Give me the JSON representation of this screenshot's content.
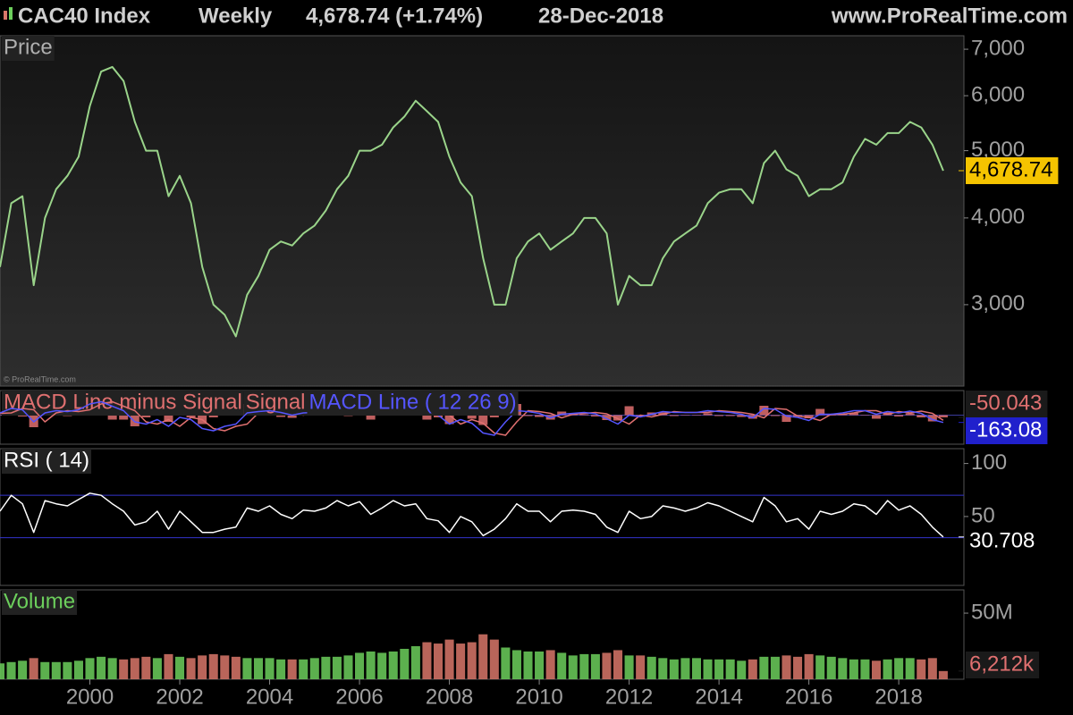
{
  "chart_data": {
    "type": "stock",
    "title": "CAC40 Index",
    "period": "Weekly",
    "quote": "4,678.74 (+1.74%)",
    "date": "28-Dec-2018",
    "source": "www.ProRealTime.com",
    "watermark": "© ProRealTime.com",
    "x": [
      1998,
      1998.25,
      1998.5,
      1998.75,
      1999,
      1999.25,
      1999.5,
      1999.75,
      2000,
      2000.25,
      2000.5,
      2000.75,
      2001,
      2001.25,
      2001.5,
      2001.75,
      2002,
      2002.25,
      2002.5,
      2002.75,
      2003,
      2003.25,
      2003.5,
      2003.75,
      2004,
      2004.25,
      2004.5,
      2004.75,
      2005,
      2005.25,
      2005.5,
      2005.75,
      2006,
      2006.25,
      2006.5,
      2006.75,
      2007,
      2007.25,
      2007.5,
      2007.75,
      2008,
      2008.25,
      2008.5,
      2008.75,
      2009,
      2009.25,
      2009.5,
      2009.75,
      2010,
      2010.25,
      2010.5,
      2010.75,
      2011,
      2011.25,
      2011.5,
      2011.75,
      2012,
      2012.25,
      2012.5,
      2012.75,
      2013,
      2013.25,
      2013.5,
      2013.75,
      2014,
      2014.25,
      2014.5,
      2014.75,
      2015,
      2015.25,
      2015.5,
      2015.75,
      2016,
      2016.25,
      2016.5,
      2016.75,
      2017,
      2017.25,
      2017.5,
      2017.75,
      2018,
      2018.25,
      2018.5,
      2018.75,
      2018.99
    ],
    "xlim": [
      1998,
      2019.45
    ],
    "xticks": [
      2000,
      2002,
      2004,
      2006,
      2008,
      2010,
      2012,
      2014,
      2016,
      2018
    ],
    "panels": [
      {
        "type": "line",
        "log": true,
        "ylim": [
          2290,
          7320
        ],
        "yticks": [
          {
            "value": 3000,
            "label": "3,000"
          },
          {
            "value": 4000,
            "label": "4,000"
          },
          {
            "value": 5000,
            "label": "5,000"
          },
          {
            "value": 6000,
            "label": "6,000"
          },
          {
            "value": 7000,
            "label": "7,000"
          }
        ],
        "series": [
          {
            "name": "Price",
            "kind": "line",
            "color": "#9ad48a",
            "current": {
              "value": 4678.74,
              "label": "4,678.74"
            },
            "values": [
              3400,
              4200,
              4300,
              3200,
              4000,
              4400,
              4600,
              4900,
              5800,
              6500,
              6600,
              6300,
              5500,
              5000,
              5000,
              4300,
              4600,
              4200,
              3400,
              3000,
              2900,
              2700,
              3100,
              3300,
              3600,
              3700,
              3650,
              3800,
              3900,
              4100,
              4400,
              4600,
              5000,
              5000,
              5100,
              5400,
              5600,
              5900,
              5700,
              5500,
              4900,
              4500,
              4300,
              3500,
              3000,
              3000,
              3500,
              3700,
              3800,
              3600,
              3700,
              3800,
              4000,
              4000,
              3800,
              3000,
              3300,
              3200,
              3200,
              3500,
              3700,
              3800,
              3900,
              4200,
              4350,
              4400,
              4400,
              4200,
              4800,
              5000,
              4700,
              4600,
              4300,
              4400,
              4400,
              4500,
              4900,
              5200,
              5100,
              5300,
              5300,
              5500,
              5400,
              5100,
              4678.74
            ]
          }
        ]
      },
      {
        "type": "line",
        "log": false,
        "ylim": [
          -650,
          550
        ],
        "yticks": [],
        "series": [
          {
            "name": "MACD Line minus Signal",
            "kind": "bar",
            "color": "#e07070",
            "current": -50.043,
            "values": [
              10,
              100,
              -30,
              -270,
              200,
              50,
              -20,
              40,
              130,
              50,
              -100,
              -100,
              -250,
              -50,
              100,
              -150,
              200,
              -50,
              -200,
              -50,
              100,
              50,
              250,
              30,
              20,
              -40,
              -60,
              50,
              10,
              20,
              40,
              -20,
              50,
              -100,
              30,
              50,
              -10,
              30,
              -100,
              -50,
              -200,
              100,
              -80,
              -220,
              -50,
              300,
              250,
              -20,
              -40,
              -100,
              80,
              20,
              20,
              -30,
              -110,
              -120,
              200,
              -40,
              60,
              60,
              -20,
              0,
              0,
              40,
              -20,
              -20,
              -40,
              -80,
              210,
              -20,
              -150,
              -30,
              -70,
              140,
              0,
              30,
              50,
              0,
              -80,
              60,
              -30,
              40,
              -50,
              -140,
              -50.043
            ]
          },
          {
            "name": "Signal",
            "kind": "line",
            "color": "#e07070",
            "values": [
              40,
              50,
              150,
              120,
              -150,
              50,
              100,
              80,
              120,
              250,
              300,
              200,
              100,
              -150,
              -200,
              -100,
              -250,
              -50,
              -100,
              -300,
              -350,
              -250,
              -200,
              50,
              80,
              100,
              60,
              0,
              50,
              60,
              80,
              120,
              100,
              150,
              50,
              80,
              130,
              120,
              150,
              50,
              0,
              -200,
              -100,
              -180,
              -400,
              -450,
              -150,
              100,
              80,
              40,
              -60,
              20,
              40,
              60,
              30,
              -80,
              -200,
              0,
              -40,
              20,
              80,
              60,
              60,
              60,
              100,
              80,
              60,
              20,
              -60,
              150,
              130,
              -20,
              -50,
              -120,
              20,
              20,
              50,
              100,
              100,
              20,
              80,
              50,
              90,
              40,
              -113.037
            ]
          },
          {
            "name": "MACD Line ( 12 26 9)",
            "kind": "line",
            "color": "#5555ff",
            "current": -163.08,
            "values": [
              50,
              150,
              120,
              -150,
              50,
              100,
              80,
              120,
              250,
              300,
              200,
              100,
              -150,
              -200,
              -100,
              -250,
              -50,
              -100,
              -300,
              -350,
              -250,
              -200,
              50,
              80,
              100,
              60,
              0,
              50,
              60,
              80,
              120,
              100,
              150,
              50,
              80,
              130,
              120,
              150,
              50,
              0,
              -200,
              -100,
              -180,
              -400,
              -450,
              -150,
              100,
              80,
              40,
              -60,
              20,
              40,
              60,
              30,
              -80,
              -200,
              0,
              -40,
              20,
              80,
              60,
              60,
              60,
              100,
              80,
              60,
              20,
              -60,
              150,
              130,
              -20,
              -50,
              -120,
              20,
              20,
              50,
              100,
              100,
              20,
              80,
              50,
              90,
              40,
              -100,
              -163.08
            ]
          }
        ]
      },
      {
        "type": "line",
        "log": false,
        "ylim": [
          -15,
          114
        ],
        "yticks": [
          50,
          100
        ],
        "levels": [
          30,
          70
        ],
        "level_color": "#3333cc",
        "series": [
          {
            "name": "RSI ( 14)",
            "kind": "line",
            "color": "#ffffff",
            "current": 30.708,
            "values": [
              55,
              70,
              62,
              35,
              65,
              62,
              60,
              66,
              72,
              70,
              62,
              55,
              42,
              45,
              55,
              38,
              55,
              45,
              35,
              35,
              38,
              40,
              58,
              55,
              60,
              52,
              48,
              56,
              55,
              58,
              65,
              60,
              64,
              52,
              58,
              65,
              60,
              62,
              48,
              46,
              35,
              50,
              45,
              32,
              38,
              48,
              62,
              55,
              55,
              45,
              55,
              56,
              55,
              52,
              40,
              35,
              55,
              48,
              50,
              60,
              58,
              55,
              58,
              63,
              60,
              55,
              50,
              45,
              68,
              60,
              45,
              48,
              38,
              55,
              52,
              55,
              62,
              60,
              52,
              65,
              56,
              60,
              52,
              40,
              30.708
            ]
          }
        ]
      },
      {
        "type": "bar",
        "log": false,
        "ylim": [
          0,
          67600000
        ],
        "yticks": [
          {
            "value": 50000000,
            "label": "50M"
          }
        ],
        "series": [
          {
            "name": "Volume",
            "kind": "bar",
            "color": "#6ccf5c",
            "down_color": "#d9776a",
            "current": {
              "value": 6212000,
              "label": "6,212k"
            },
            "values": [
              12000000,
              13000000,
              14000000,
              16000000,
              13000000,
              13000000,
              13000000,
              14000000,
              16000000,
              17000000,
              16000000,
              15000000,
              16000000,
              17000000,
              16000000,
              19000000,
              17000000,
              16000000,
              18000000,
              19000000,
              18000000,
              17000000,
              16000000,
              16000000,
              16000000,
              15000000,
              15000000,
              15000000,
              16000000,
              17000000,
              17000000,
              18000000,
              20000000,
              21000000,
              20000000,
              21000000,
              23000000,
              25000000,
              28000000,
              27000000,
              30000000,
              27000000,
              28000000,
              34000000,
              30000000,
              24000000,
              22000000,
              21000000,
              21000000,
              22000000,
              20000000,
              18000000,
              19000000,
              19000000,
              20000000,
              22000000,
              18000000,
              18000000,
              17000000,
              16000000,
              15000000,
              16000000,
              16000000,
              15000000,
              15000000,
              15000000,
              14000000,
              15000000,
              17000000,
              17000000,
              18000000,
              17000000,
              19000000,
              18000000,
              17000000,
              16000000,
              15000000,
              15000000,
              14000000,
              15000000,
              16000000,
              16000000,
              15000000,
              16000000,
              6212000
            ]
          }
        ]
      }
    ]
  }
}
